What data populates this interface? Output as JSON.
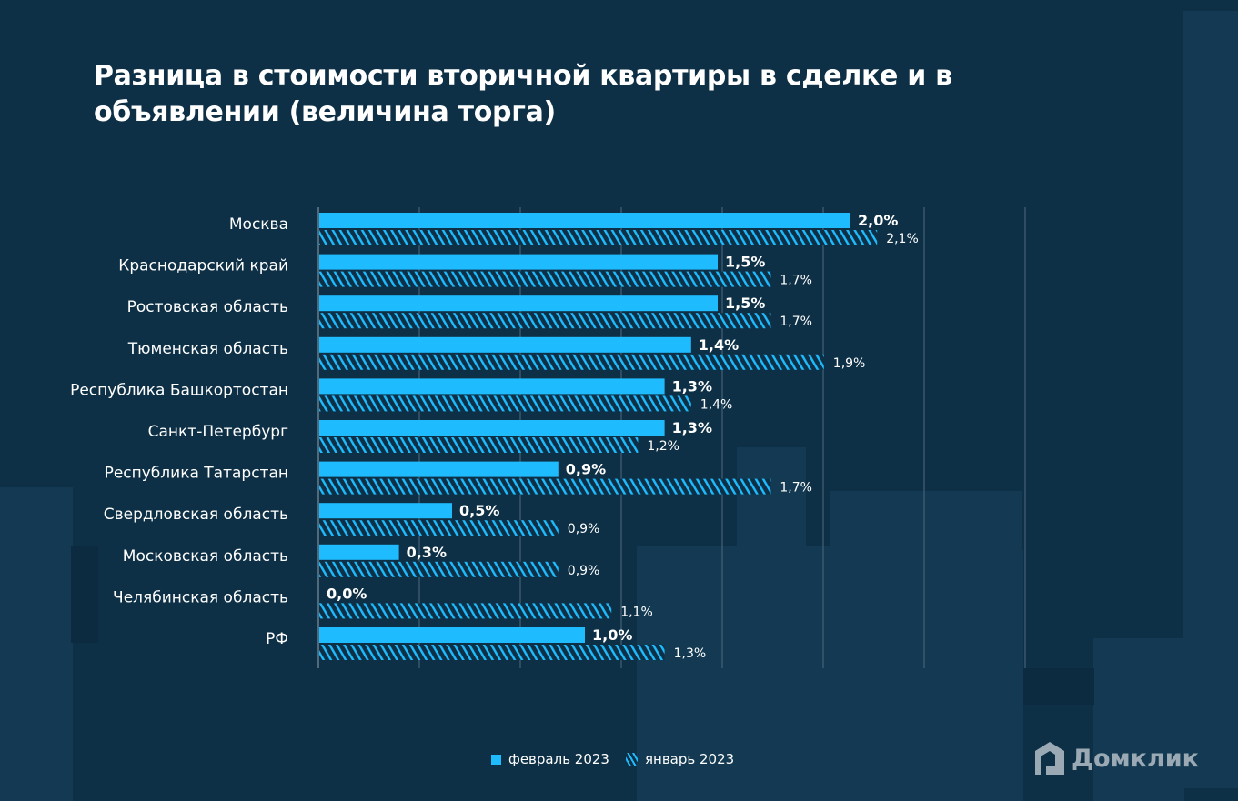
{
  "title": "Разница в стоимости вторичной квартиры в сделке и в объявлении (величина торга)",
  "chart_data": {
    "type": "bar",
    "orientation": "horizontal",
    "title": "Разница в стоимости вторичной квартиры в сделке и в объявлении (величина торга)",
    "categories": [
      "Москва",
      "Краснодарский край",
      "Ростовская область",
      "Тюменская область",
      "Республика Башкортостан",
      "Санкт-Петербург",
      "Республика Татарстан",
      "Свердловская область",
      "Московская область",
      "Челябинская область",
      "РФ"
    ],
    "series": [
      {
        "name": "февраль 2023",
        "values": [
          2.0,
          1.5,
          1.5,
          1.4,
          1.3,
          1.3,
          0.9,
          0.5,
          0.3,
          0.0,
          1.0
        ],
        "labels": [
          "2,0%",
          "1,5%",
          "1,5%",
          "1,4%",
          "1,3%",
          "1,3%",
          "0,9%",
          "0,5%",
          "0,3%",
          "0,0%",
          "1,0%"
        ],
        "color": "#1ebcff",
        "pattern": "solid"
      },
      {
        "name": "январь 2023",
        "values": [
          2.1,
          1.7,
          1.7,
          1.9,
          1.4,
          1.2,
          1.7,
          0.9,
          0.9,
          1.1,
          1.3
        ],
        "labels": [
          "2,1%",
          "1,7%",
          "1,7%",
          "1,9%",
          "1,4%",
          "1,2%",
          "1,7%",
          "0,9%",
          "0,9%",
          "1,1%",
          "1,3%"
        ],
        "color": "#1ebcff",
        "pattern": "hatched"
      }
    ],
    "grid": true,
    "legend": "bottom"
  },
  "legend": {
    "feb": "февраль 2023",
    "jan": "январь 2023"
  },
  "logo": {
    "text": "Домклик"
  },
  "colors": {
    "background": "#0e3046",
    "bar": "#1ebcff"
  }
}
